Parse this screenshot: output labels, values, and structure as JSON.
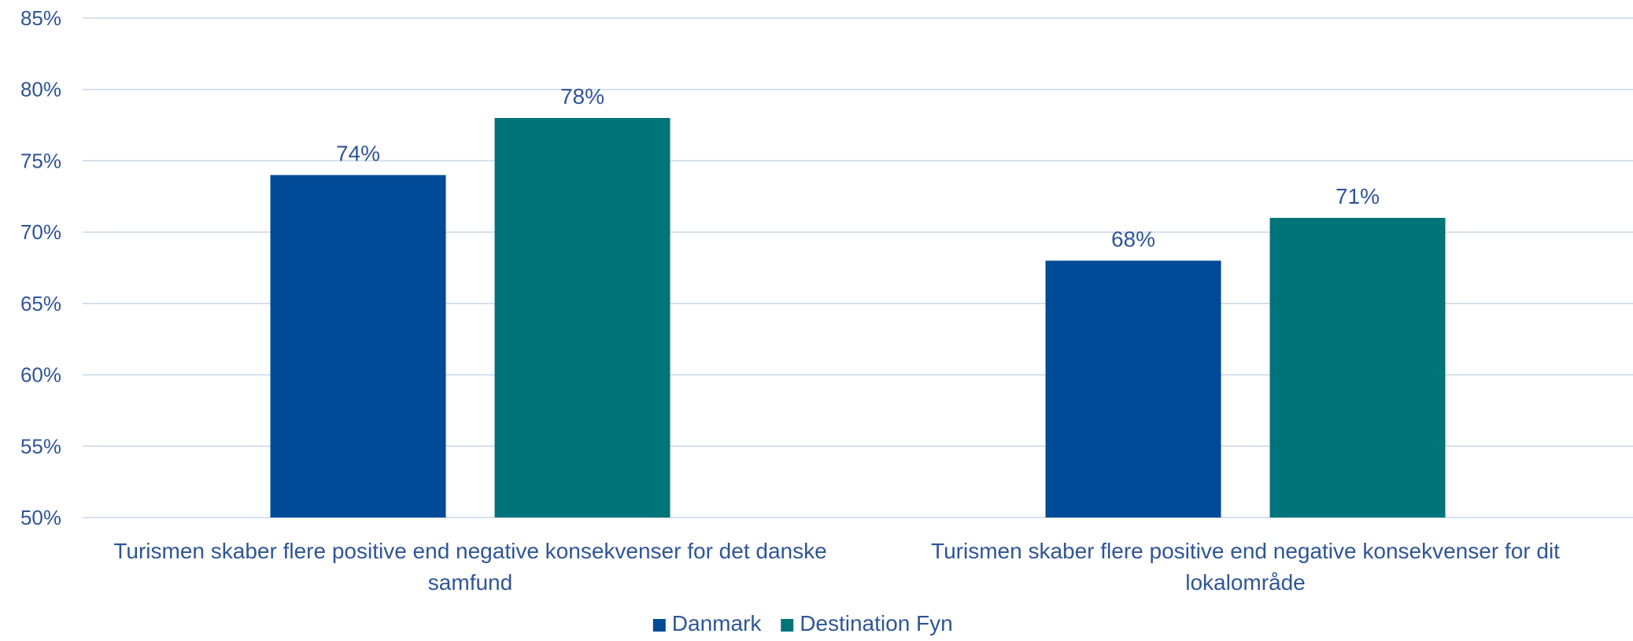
{
  "chart_data": {
    "type": "bar",
    "categories": [
      [
        "Turismen skaber flere positive end negative konsekvenser for det danske",
        "samfund"
      ],
      [
        "Turismen skaber flere positive end negative konsekvenser for dit",
        "lokalområde"
      ]
    ],
    "series": [
      {
        "name": "Danmark",
        "values": [
          74,
          68
        ],
        "labels": [
          "74%",
          "68%"
        ],
        "color": "#004a97"
      },
      {
        "name": "Destination Fyn",
        "values": [
          78,
          71
        ],
        "labels": [
          "78%",
          "71%"
        ],
        "color": "#007479"
      }
    ],
    "ylim": [
      50,
      85
    ],
    "yticks": [
      50,
      55,
      60,
      65,
      70,
      75,
      80,
      85
    ],
    "ytick_labels": [
      "50%",
      "55%",
      "60%",
      "65%",
      "70%",
      "75%",
      "80%",
      "85%"
    ],
    "grid": true,
    "legend_position": "bottom",
    "text_color": "#2f5597",
    "grid_color": "#c9d7e6"
  }
}
